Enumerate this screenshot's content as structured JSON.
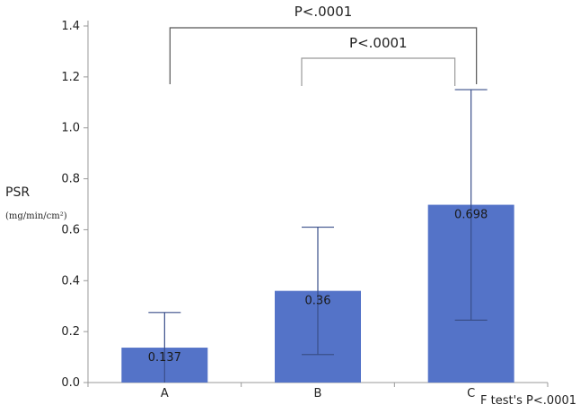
{
  "chart_data": {
    "type": "bar",
    "categories": [
      "A",
      "B",
      "C"
    ],
    "values": [
      0.137,
      0.36,
      0.698
    ],
    "value_labels": [
      "0.137",
      "0.36",
      "0.698"
    ],
    "error_upper": [
      0.275,
      0.61,
      1.15
    ],
    "error_lower": [
      0.0,
      0.11,
      0.245
    ],
    "ylabel": "PSR",
    "yunit": "(mg/min/cm²)",
    "ylim": [
      0,
      1.4
    ],
    "yticks": [
      "0.0",
      "0.2",
      "0.4",
      "0.6",
      "0.8",
      "1.0",
      "1.2",
      "1.4"
    ],
    "bar_color": "#5473c8",
    "grid": false,
    "significance": [
      {
        "from": "A",
        "to": "C",
        "label": "P<.0001"
      },
      {
        "from": "B",
        "to": "C",
        "label": "P<.0001"
      }
    ],
    "note": "F test's P<.0001"
  }
}
